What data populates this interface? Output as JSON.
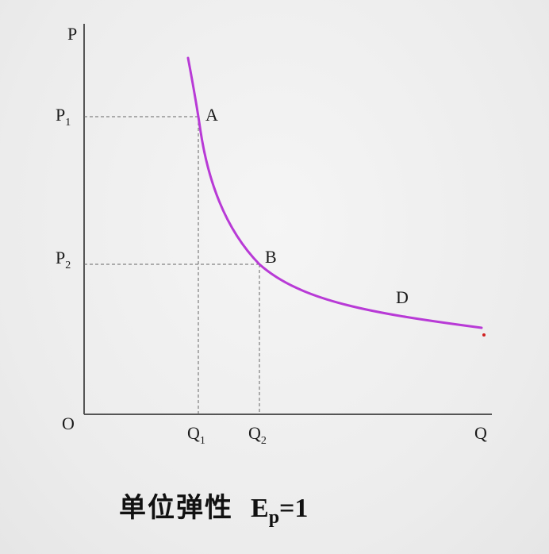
{
  "axes": {
    "y_label": "P",
    "x_label": "Q",
    "origin_label": "O"
  },
  "price_ticks": [
    {
      "base": "P",
      "sub": "1"
    },
    {
      "base": "P",
      "sub": "2"
    }
  ],
  "quantity_ticks": [
    {
      "base": "Q",
      "sub": "1"
    },
    {
      "base": "Q",
      "sub": "2"
    }
  ],
  "points": {
    "a": "A",
    "b": "B",
    "d": "D"
  },
  "colors": {
    "curve": "#b83ad6",
    "axis": "#555555",
    "guide": "#666666",
    "marker": "#d02020"
  },
  "caption": {
    "text": "单位弹性",
    "formula_base": "E",
    "formula_sub": "p",
    "formula_tail": "=1"
  }
}
